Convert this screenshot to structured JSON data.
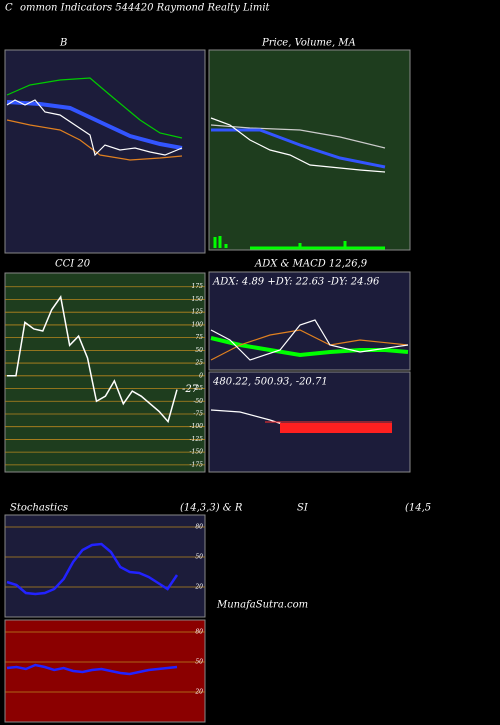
{
  "header": {
    "title": "ommon  Indicators 544420  Raymond Realty Limit",
    "corner": "C",
    "watermark": "MunafaSutra.com"
  },
  "chart_data": [
    {
      "type": "decor",
      "title": "B"
    },
    {
      "type": "decor",
      "title": "Price, Volume, MA"
    },
    {
      "type": "line",
      "title": "CCI 20",
      "color": "#ffffff",
      "grid_color": "#b8861e",
      "values": [
        0,
        0,
        105,
        92,
        88,
        130,
        155,
        60,
        78,
        35,
        -50,
        -40,
        -10,
        -55,
        -30,
        -40,
        -55,
        -70,
        -90,
        -27
      ],
      "ylim": [
        -189,
        202
      ],
      "yticks": [
        175,
        150,
        125,
        100,
        75,
        50,
        25,
        0,
        -25,
        -50,
        -75,
        -100,
        -125,
        -150,
        -175
      ]
    },
    {
      "type": "decor",
      "title": "ADX  & MACD 12,26,9",
      "annotations": [
        "ADX: 4.89 +DY: 22.63 -DY: 24.96",
        "480.22,  500.93,  -20.71"
      ]
    },
    {
      "type": "line",
      "title": "Stochastics",
      "subtitle": "(14,3,3) & R",
      "color": "#2222ff",
      "grid_color": "#b8861e",
      "values": [
        25,
        22,
        14,
        13,
        14,
        18,
        28,
        45,
        57,
        62,
        63,
        55,
        40,
        35,
        34,
        30,
        24,
        18,
        32
      ],
      "ylim": [
        -10,
        92
      ],
      "yticks": [
        80,
        50,
        20
      ]
    },
    {
      "type": "line",
      "title": "SI",
      "subtitle": "(14,5",
      "color": "#2222ff",
      "grid_color": "#b8861e",
      "values": [
        44,
        45,
        43,
        47,
        45,
        42,
        44,
        41,
        40,
        42,
        43,
        41,
        39,
        38,
        40,
        42,
        43,
        44,
        45
      ],
      "ylim": [
        -10,
        92
      ],
      "yticks": [
        80,
        50,
        20
      ]
    }
  ]
}
